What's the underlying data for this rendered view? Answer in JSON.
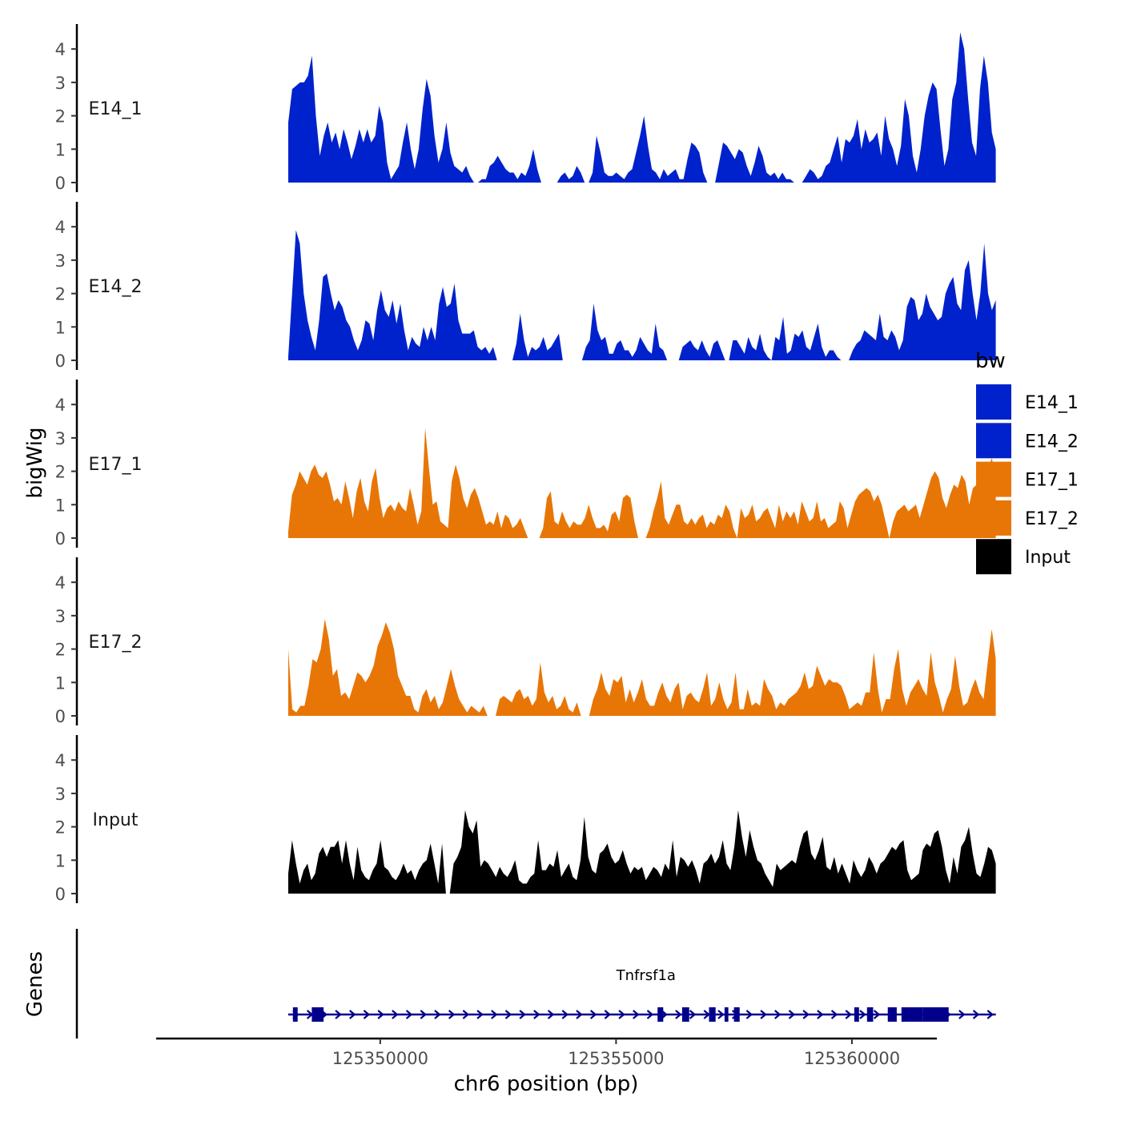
{
  "chart_data": {
    "type": "area",
    "title": "",
    "ylabel": "bigWig",
    "xlabel": "chr6 position (bp)",
    "chromosome": "chr6",
    "xlim": [
      125345250,
      125361800
    ],
    "ylim": [
      0,
      4.7
    ],
    "x_ticks": [
      125350000,
      125355000,
      125360000
    ],
    "x_tick_labels": [
      "125350000",
      "125355000",
      "125360000"
    ],
    "y_ticks": [
      0,
      1,
      2,
      3,
      4
    ],
    "y_tick_labels": [
      "0",
      "1",
      "2",
      "3",
      "4"
    ],
    "data_range": [
      125348050,
      125363050
    ],
    "legend": {
      "title": "bw",
      "position": "right",
      "entries": [
        {
          "label": "E14_1",
          "color": "#0022cc"
        },
        {
          "label": "E14_2",
          "color": "#0022cc"
        },
        {
          "label": "E17_1",
          "color": "#e87606"
        },
        {
          "label": "E17_2",
          "color": "#e87606"
        },
        {
          "label": "Input",
          "color": "#000000"
        }
      ]
    },
    "series": [
      {
        "name": "E14_1",
        "color": "#0022cc",
        "values": [
          1.8,
          2.8,
          2.9,
          3.0,
          3.0,
          3.2,
          3.8,
          2.0,
          0.8,
          1.4,
          1.8,
          1.2,
          1.5,
          1.0,
          1.6,
          1.2,
          0.7,
          1.1,
          1.6,
          1.2,
          1.6,
          1.2,
          1.4,
          2.3,
          1.8,
          0.6,
          0.1,
          0.3,
          0.5,
          1.2,
          1.8,
          1.0,
          0.4,
          1.0,
          2.2,
          3.1,
          2.6,
          1.4,
          0.6,
          1.0,
          1.8,
          0.9,
          0.5,
          0.4,
          0.3,
          0.5,
          0.2,
          0.0,
          0.0,
          0.1,
          0.1,
          0.5,
          0.6,
          0.8,
          0.6,
          0.4,
          0.3,
          0.3,
          0.1,
          0.3,
          0.2,
          0.5,
          1.0,
          0.4,
          0.0,
          null,
          null,
          null,
          0.0,
          0.2,
          0.3,
          0.1,
          0.2,
          0.5,
          0.3,
          0.0,
          0.0,
          0.3,
          1.4,
          0.9,
          0.3,
          0.2,
          0.2,
          0.3,
          0.2,
          0.1,
          0.3,
          0.4,
          0.9,
          1.4,
          2.0,
          1.1,
          0.4,
          0.3,
          0.1,
          0.4,
          0.2,
          0.3,
          0.4,
          0.1,
          0.1,
          0.7,
          1.2,
          1.1,
          0.9,
          0.3,
          0.0,
          null,
          0.0,
          0.6,
          1.2,
          1.1,
          0.9,
          0.7,
          1.0,
          0.9,
          0.5,
          0.2,
          0.6,
          1.1,
          0.8,
          0.3,
          0.2,
          0.3,
          0.1,
          0.3,
          0.1,
          0.1,
          0.0,
          null,
          0.0,
          0.2,
          0.4,
          0.3,
          0.1,
          0.2,
          0.5,
          0.6,
          1.0,
          1.4,
          0.6,
          1.3,
          1.2,
          1.4,
          1.9,
          1.0,
          1.6,
          1.2,
          1.3,
          1.5,
          0.8,
          2.0,
          1.3,
          1.0,
          0.5,
          1.1,
          2.5,
          2.0,
          0.8,
          0.3,
          1.0,
          2.0,
          2.6,
          3.0,
          2.8,
          1.6,
          0.5,
          1.0,
          2.5,
          3.0,
          4.5,
          4.0,
          2.5,
          1.2,
          0.8,
          2.8,
          3.8,
          3.0,
          1.5,
          1.0
        ]
      },
      {
        "name": "E14_2",
        "color": "#0022cc",
        "values": [
          0.1,
          2.0,
          3.9,
          3.5,
          2.0,
          1.2,
          0.7,
          0.3,
          1.2,
          2.5,
          2.6,
          2.0,
          1.5,
          1.8,
          1.6,
          1.2,
          1.0,
          0.6,
          0.3,
          0.6,
          1.2,
          1.1,
          0.6,
          1.5,
          2.1,
          1.5,
          1.3,
          1.8,
          1.1,
          1.7,
          0.9,
          0.3,
          0.7,
          0.5,
          0.4,
          1.0,
          0.6,
          1.0,
          0.6,
          1.7,
          2.2,
          1.6,
          1.7,
          2.3,
          1.2,
          0.8,
          0.8,
          0.8,
          0.9,
          0.4,
          0.3,
          0.4,
          0.2,
          0.4,
          0.0,
          null,
          null,
          null,
          0.0,
          0.5,
          1.4,
          0.6,
          0.1,
          0.4,
          0.3,
          0.4,
          0.7,
          0.3,
          0.4,
          0.6,
          0.8,
          0.0,
          null,
          null,
          null,
          null,
          0.0,
          0.4,
          0.6,
          1.7,
          0.9,
          0.6,
          0.7,
          0.2,
          0.2,
          0.5,
          0.6,
          0.3,
          0.3,
          0.1,
          0.3,
          0.7,
          0.5,
          0.3,
          0.2,
          1.1,
          0.4,
          0.3,
          0.0,
          null,
          null,
          0.0,
          0.4,
          0.5,
          0.6,
          0.4,
          0.3,
          0.6,
          0.3,
          0.1,
          0.5,
          0.6,
          0.3,
          0.0,
          0.0,
          0.6,
          0.6,
          0.4,
          0.2,
          0.7,
          0.4,
          0.3,
          0.8,
          0.3,
          0.1,
          0.0,
          0.7,
          0.6,
          1.3,
          0.2,
          0.3,
          0.8,
          0.7,
          0.9,
          0.4,
          0.3,
          0.7,
          1.1,
          0.4,
          0.1,
          0.3,
          0.3,
          0.1,
          0.0,
          null,
          0.0,
          0.3,
          0.5,
          0.6,
          0.9,
          0.8,
          0.7,
          0.6,
          1.4,
          0.7,
          0.6,
          0.9,
          0.7,
          0.3,
          0.6,
          1.6,
          1.9,
          1.8,
          1.2,
          1.4,
          2.0,
          1.6,
          1.4,
          1.2,
          1.3,
          2.0,
          2.3,
          2.5,
          1.7,
          1.5,
          2.7,
          3.0,
          2.0,
          1.2,
          2.0,
          3.5,
          2.0,
          1.5,
          1.8
        ]
      },
      {
        "name": "E17_1",
        "color": "#e87606",
        "values": [
          0.2,
          1.3,
          1.6,
          2.0,
          1.8,
          1.6,
          2.0,
          2.2,
          1.9,
          1.8,
          2.0,
          1.6,
          1.1,
          1.2,
          1.0,
          1.7,
          1.2,
          0.6,
          1.4,
          1.8,
          1.1,
          0.8,
          1.7,
          2.1,
          1.2,
          0.6,
          0.9,
          1.0,
          0.8,
          1.1,
          0.9,
          0.8,
          1.5,
          1.0,
          0.4,
          0.8,
          3.3,
          2.1,
          1.0,
          1.1,
          0.5,
          0.4,
          0.3,
          1.7,
          2.2,
          1.8,
          1.2,
          0.9,
          1.3,
          1.5,
          1.2,
          0.8,
          0.4,
          0.5,
          0.4,
          0.8,
          0.3,
          0.7,
          0.6,
          0.3,
          0.4,
          0.6,
          0.3,
          0.0,
          null,
          null,
          0.0,
          0.3,
          1.2,
          1.4,
          0.5,
          0.4,
          0.8,
          0.5,
          0.3,
          0.5,
          0.4,
          0.4,
          0.6,
          1.0,
          0.6,
          0.3,
          0.3,
          0.4,
          0.2,
          0.7,
          0.8,
          0.5,
          1.2,
          1.3,
          1.2,
          0.5,
          0.0,
          null,
          0.0,
          0.3,
          0.8,
          1.2,
          1.7,
          0.6,
          0.4,
          0.7,
          1.0,
          1.0,
          0.5,
          0.4,
          0.6,
          0.4,
          0.6,
          0.7,
          0.3,
          0.5,
          0.4,
          0.7,
          0.6,
          1.0,
          0.8,
          0.3,
          0.0,
          0.9,
          0.6,
          0.7,
          1.0,
          0.5,
          0.6,
          0.8,
          0.9,
          0.6,
          0.3,
          1.0,
          0.5,
          0.8,
          0.6,
          0.8,
          0.4,
          1.1,
          0.8,
          0.5,
          0.6,
          1.1,
          0.5,
          0.6,
          0.3,
          0.4,
          0.5,
          1.1,
          0.9,
          0.3,
          0.7,
          1.1,
          1.3,
          1.4,
          1.5,
          1.4,
          1.1,
          1.3,
          1.0,
          0.5,
          0.0,
          0.5,
          0.8,
          0.9,
          1.0,
          0.8,
          0.9,
          1.0,
          0.6,
          1.0,
          1.4,
          1.8,
          2.0,
          1.8,
          1.2,
          0.9,
          1.3,
          1.6,
          1.5,
          1.9,
          1.7,
          1.0,
          1.5,
          1.6,
          1.9,
          1.9,
          2.1,
          2.4,
          1.4
        ]
      },
      {
        "name": "E17_2",
        "color": "#e87606",
        "values": [
          2.0,
          0.2,
          0.1,
          0.3,
          0.3,
          0.9,
          1.7,
          1.6,
          2.0,
          2.9,
          2.3,
          1.2,
          1.4,
          0.6,
          0.7,
          0.5,
          0.9,
          1.3,
          1.2,
          1.0,
          1.2,
          1.5,
          2.1,
          2.4,
          2.8,
          2.5,
          2.0,
          1.2,
          0.9,
          0.6,
          0.6,
          0.2,
          0.1,
          0.6,
          0.8,
          0.4,
          0.6,
          0.2,
          0.4,
          0.9,
          1.4,
          0.9,
          0.5,
          0.3,
          0.1,
          0.3,
          0.2,
          0.1,
          0.3,
          0.0,
          null,
          0.0,
          0.5,
          0.6,
          0.5,
          0.4,
          0.7,
          0.8,
          0.5,
          0.6,
          0.3,
          0.5,
          1.6,
          0.7,
          0.4,
          0.6,
          0.2,
          0.3,
          0.6,
          0.2,
          0.1,
          0.4,
          0.0,
          null,
          0.0,
          0.5,
          0.8,
          1.3,
          0.8,
          0.6,
          1.1,
          1.0,
          1.2,
          0.4,
          0.8,
          0.4,
          0.7,
          1.1,
          0.5,
          0.3,
          0.3,
          0.7,
          1.0,
          0.6,
          0.4,
          0.8,
          1.0,
          0.2,
          0.6,
          0.7,
          0.5,
          0.4,
          0.8,
          1.3,
          0.3,
          0.5,
          1.0,
          0.5,
          0.2,
          0.4,
          1.3,
          0.2,
          0.2,
          0.8,
          0.3,
          0.4,
          0.3,
          1.1,
          0.8,
          0.6,
          0.2,
          0.4,
          0.3,
          0.5,
          0.6,
          0.7,
          0.9,
          1.3,
          0.8,
          0.9,
          1.5,
          1.2,
          0.9,
          1.1,
          1.0,
          1.0,
          0.9,
          0.6,
          0.2,
          0.3,
          0.4,
          0.3,
          0.7,
          0.7,
          1.9,
          0.8,
          0.1,
          0.5,
          0.5,
          1.4,
          2.0,
          0.8,
          0.3,
          0.7,
          0.9,
          1.1,
          0.8,
          0.6,
          1.9,
          1.0,
          0.6,
          0.1,
          0.5,
          0.8,
          1.8,
          0.9,
          0.3,
          0.4,
          0.8,
          1.1,
          0.7,
          0.5,
          1.6,
          2.6,
          1.7
        ]
      },
      {
        "name": "Input",
        "color": "#000000",
        "values": [
          0.6,
          1.6,
          0.9,
          0.3,
          0.7,
          0.9,
          0.4,
          0.6,
          1.2,
          1.4,
          1.1,
          1.4,
          1.4,
          1.6,
          0.9,
          1.6,
          0.9,
          0.4,
          1.4,
          0.7,
          0.5,
          0.4,
          0.7,
          0.9,
          1.6,
          0.8,
          0.7,
          0.5,
          0.4,
          0.6,
          0.9,
          0.6,
          0.7,
          0.4,
          0.7,
          0.9,
          1.0,
          1.5,
          0.9,
          0.3,
          1.5,
          0.0,
          0.0,
          0.9,
          1.1,
          1.4,
          2.5,
          2.0,
          1.8,
          2.2,
          0.8,
          1.0,
          0.9,
          0.7,
          0.5,
          0.8,
          0.6,
          0.5,
          0.7,
          1.0,
          0.4,
          0.3,
          0.3,
          0.5,
          0.6,
          1.6,
          0.7,
          0.7,
          0.9,
          0.8,
          1.3,
          0.5,
          0.7,
          0.9,
          0.5,
          0.4,
          1.0,
          2.3,
          1.1,
          0.7,
          0.6,
          1.2,
          1.3,
          1.5,
          1.1,
          0.9,
          1.0,
          1.3,
          0.9,
          0.6,
          0.8,
          0.7,
          0.8,
          0.4,
          0.6,
          0.8,
          0.7,
          0.5,
          0.9,
          0.7,
          1.6,
          0.5,
          1.1,
          1.0,
          0.8,
          1.0,
          0.7,
          0.3,
          0.9,
          1.0,
          1.2,
          0.9,
          1.1,
          1.6,
          0.9,
          0.7,
          1.4,
          2.5,
          1.7,
          1.1,
          1.9,
          1.4,
          1.0,
          0.9,
          0.6,
          0.4,
          0.2,
          0.9,
          0.7,
          0.8,
          0.9,
          1.0,
          0.9,
          1.4,
          1.8,
          1.9,
          1.2,
          1.0,
          1.3,
          1.7,
          0.8,
          0.7,
          1.1,
          0.6,
          0.9,
          0.6,
          0.3,
          1.0,
          0.7,
          0.5,
          0.7,
          1.1,
          0.9,
          0.6,
          0.9,
          1.0,
          1.2,
          1.4,
          1.3,
          1.5,
          1.6,
          0.7,
          0.4,
          0.5,
          0.6,
          1.3,
          1.5,
          1.4,
          1.8,
          1.9,
          1.4,
          0.7,
          0.3,
          1.1,
          0.6,
          1.4,
          1.6,
          2.0,
          1.2,
          0.6,
          0.5,
          0.9,
          1.4,
          1.3,
          0.9
        ]
      }
    ],
    "genes": {
      "panel_label": "Genes",
      "color": "#00008b",
      "items": [
        {
          "name": "Tnfrsf1a",
          "start": 125348050,
          "end": 125363050,
          "strand": "+",
          "exons": [
            [
              125348150,
              125348250
            ],
            [
              125348550,
              125348800
            ],
            [
              125355880,
              125356000
            ],
            [
              125356400,
              125356550
            ],
            [
              125356970,
              125357110
            ],
            [
              125357300,
              125357380
            ],
            [
              125357500,
              125357620
            ],
            [
              125360050,
              125360150
            ],
            [
              125360320,
              125360450
            ],
            [
              125360760,
              125360950
            ],
            [
              125361050,
              125361500
            ],
            [
              125361500,
              125362050
            ]
          ]
        }
      ]
    }
  }
}
